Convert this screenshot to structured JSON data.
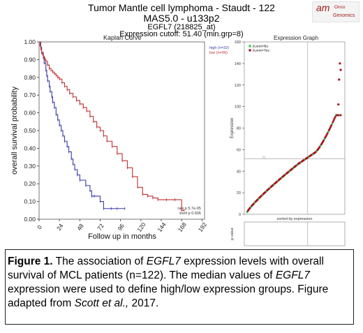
{
  "header": {
    "title": "Tumor Mantle cell lymphoma - Staudt - 122",
    "subtitle": "MAS5.0 - u133p2",
    "gene": "EGFL7 (218825_at)",
    "cutoff": "Expression cutoff: 51.40 (min.grp=8)"
  },
  "logo": {
    "line1": "am",
    "line2": "Onco",
    "line3": "Genomics"
  },
  "caption": {
    "label": "Figure 1.",
    "p1": " The association of ",
    "g1": "EGFL7",
    "p2": " expression levels with overall survival of MCL patients (n=122). The median values of ",
    "g2": "EGFL7",
    "p3": " expression were used to define high/low expression groups. Figure adapted from ",
    "ref": "Scott et al.,",
    "p4": " 2017."
  },
  "chart_data": [
    {
      "type": "line",
      "title": "Kaplan Curve",
      "xlabel": "Follow up in months",
      "ylabel": "overall survival probability",
      "xlim": [
        0,
        195
      ],
      "ylim": [
        0,
        1.0
      ],
      "x_ticks": [
        "0",
        "24",
        "48",
        "72",
        "96",
        "120",
        "144",
        "168",
        "192"
      ],
      "y_ticks": [
        "0.00",
        "0.10",
        "0.20",
        "0.30",
        "0.40",
        "0.50",
        "0.60",
        "0.70",
        "0.80",
        "0.90",
        "1.00"
      ],
      "legend_position": "top-right",
      "annotations": [
        "raw p 5.7e-05",
        "bonf p 0.606"
      ],
      "series": [
        {
          "name": "high (n=32)",
          "color": "#3a3aa8",
          "x": [
            0,
            2,
            3,
            5,
            6,
            8,
            9,
            10,
            12,
            13,
            15,
            16,
            18,
            20,
            22,
            24,
            26,
            28,
            30,
            33,
            35,
            38,
            40,
            42,
            45,
            48,
            55,
            60,
            62,
            65,
            72,
            76,
            85,
            92,
            101
          ],
          "y": [
            1.0,
            0.97,
            0.94,
            0.91,
            0.88,
            0.84,
            0.81,
            0.78,
            0.75,
            0.72,
            0.69,
            0.66,
            0.63,
            0.59,
            0.56,
            0.53,
            0.5,
            0.47,
            0.44,
            0.41,
            0.38,
            0.34,
            0.31,
            0.28,
            0.25,
            0.22,
            0.19,
            0.16,
            0.13,
            0.13,
            0.1,
            0.06,
            0.06,
            0.06,
            0.06
          ]
        },
        {
          "name": "low (n=90)",
          "color": "#c03030",
          "x": [
            0,
            1,
            2,
            3,
            4,
            5,
            6,
            7,
            8,
            10,
            12,
            14,
            16,
            18,
            20,
            22,
            24,
            27,
            30,
            33,
            36,
            40,
            44,
            48,
            52,
            56,
            60,
            64,
            68,
            72,
            76,
            80,
            86,
            92,
            98,
            104,
            110,
            116,
            122,
            128,
            134,
            140,
            150,
            160,
            168,
            171
          ],
          "y": [
            1.0,
            0.98,
            0.96,
            0.94,
            0.93,
            0.92,
            0.91,
            0.9,
            0.89,
            0.87,
            0.85,
            0.84,
            0.83,
            0.82,
            0.81,
            0.8,
            0.79,
            0.77,
            0.75,
            0.73,
            0.71,
            0.69,
            0.67,
            0.65,
            0.63,
            0.61,
            0.58,
            0.55,
            0.52,
            0.5,
            0.47,
            0.44,
            0.41,
            0.37,
            0.33,
            0.29,
            0.24,
            0.18,
            0.14,
            0.13,
            0.12,
            0.11,
            0.11,
            0.11,
            0.05,
            0.05
          ]
        }
      ]
    },
    {
      "type": "scatter",
      "title": "Expression Graph",
      "xlabel": "sorted by expression",
      "ylabel": "Expression",
      "lower_panel_label": "p-value",
      "ylim": [
        0,
        160
      ],
      "y_ticks": [
        "0",
        "20",
        "40",
        "60",
        "80",
        "100",
        "120",
        "140",
        "160"
      ],
      "cutoff_y": 51.4,
      "cutoff_label": "51",
      "legend_position": "top-left",
      "series": [
        {
          "name": "Event=No",
          "color": "#33cc44"
        },
        {
          "name": "Event=Yes",
          "color": "#aa1122"
        }
      ],
      "extreme_points": [
        {
          "rank": 120,
          "value": 140,
          "event": "Event=Yes"
        },
        {
          "rank": 121,
          "value": 134,
          "event": "Event=Yes"
        },
        {
          "rank": 119,
          "value": 125,
          "event": "Event=Yes"
        },
        {
          "rank": 118,
          "value": 102,
          "event": "Event=Yes"
        }
      ]
    }
  ]
}
